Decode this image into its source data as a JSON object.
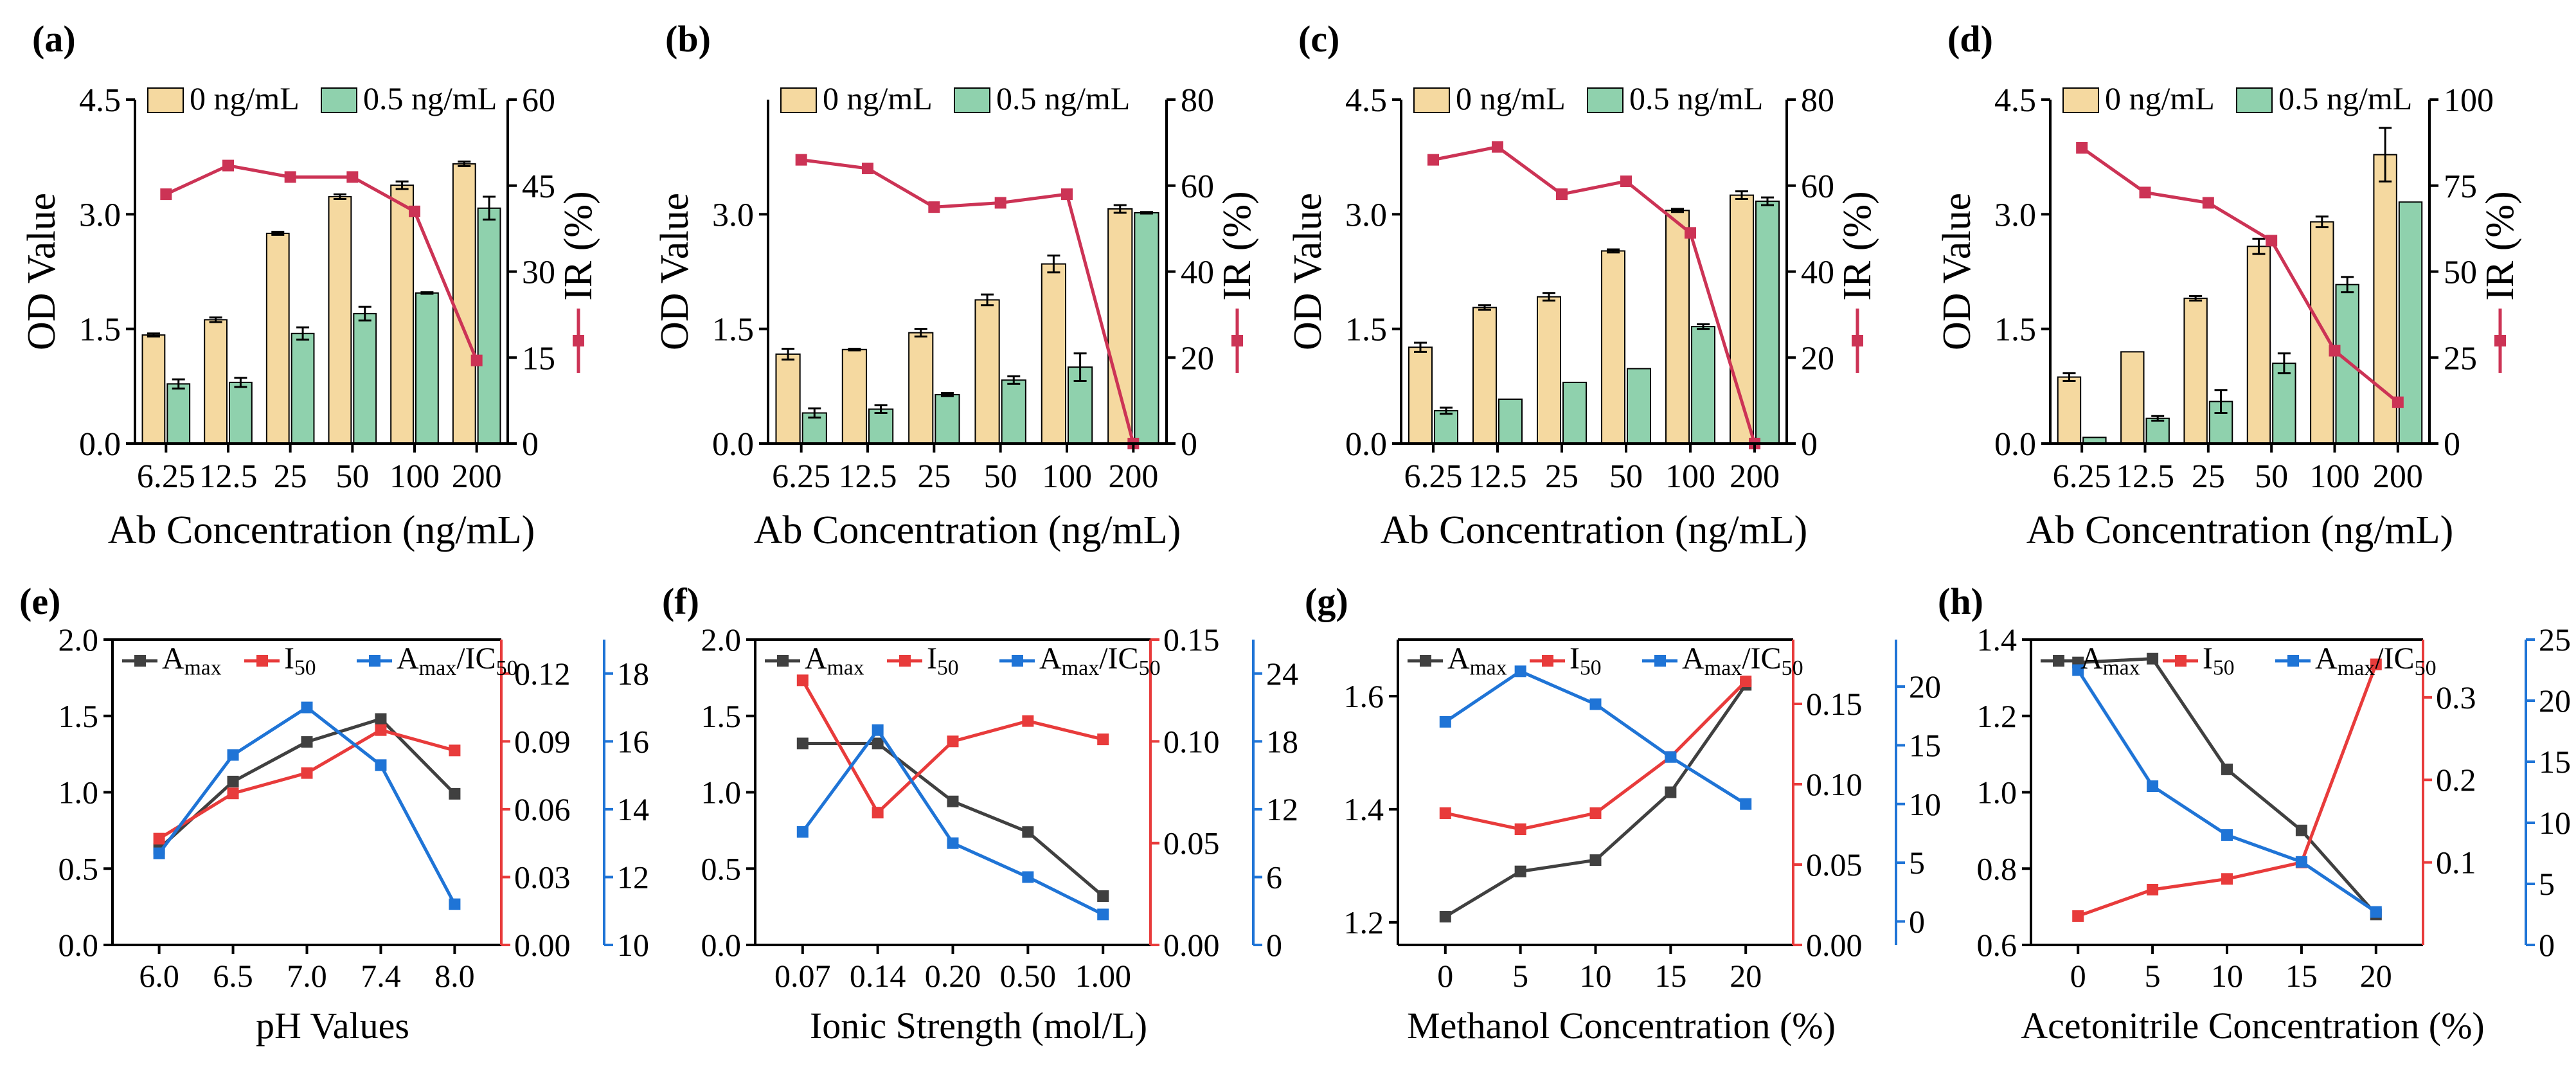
{
  "colors": {
    "bar_a": "#f5d9a0",
    "bar_b": "#8fd1ad",
    "ir": "#cc3355",
    "black": "#404040",
    "red": "#e83b3b",
    "blue": "#1f74d6"
  },
  "chart_data": [
    {
      "panel": "(a)",
      "type": "bar",
      "categories": [
        "6.25",
        "12.5",
        "25",
        "50",
        "100",
        "200"
      ],
      "series": [
        {
          "name": "0 ng/mL",
          "values": [
            1.42,
            1.62,
            2.75,
            3.23,
            3.38,
            3.66
          ],
          "err": [
            0.02,
            0.03,
            0.02,
            0.03,
            0.05,
            0.03
          ]
        },
        {
          "name": "0.5 ng/mL",
          "values": [
            0.78,
            0.8,
            1.44,
            1.7,
            1.97,
            3.08
          ],
          "err": [
            0.06,
            0.06,
            0.08,
            0.09,
            0.01,
            0.15
          ]
        }
      ],
      "line": {
        "name": "IR (%)",
        "values": [
          43.5,
          48.5,
          46.5,
          46.5,
          40.5,
          14.5
        ]
      },
      "xlabel": "Ab Concentration (ng/mL)",
      "ylabel": "OD Value",
      "y2label": "IR (%)",
      "ylim": [
        0,
        4.5
      ],
      "yticks": [
        "0.0",
        "1.5",
        "3.0",
        "4.5"
      ],
      "y2lim": [
        0,
        60
      ],
      "y2ticks": [
        "0",
        "15",
        "30",
        "45",
        "60"
      ]
    },
    {
      "panel": "(b)",
      "type": "bar",
      "categories": [
        "6.25",
        "12.5",
        "25",
        "50",
        "100",
        "200"
      ],
      "series": [
        {
          "name": "0 ng/mL",
          "values": [
            1.17,
            1.23,
            1.45,
            1.88,
            2.35,
            3.07
          ],
          "err": [
            0.07,
            0.01,
            0.05,
            0.07,
            0.11,
            0.05
          ]
        },
        {
          "name": "0.5 ng/mL",
          "values": [
            0.4,
            0.45,
            0.64,
            0.83,
            1.0,
            3.02
          ],
          "err": [
            0.06,
            0.05,
            0.02,
            0.05,
            0.18,
            0.01
          ]
        }
      ],
      "line": {
        "name": "IR (%)",
        "values": [
          66,
          64,
          55,
          56,
          58,
          0
        ]
      },
      "xlabel": "Ab Concentration (ng/mL)",
      "ylabel": "OD Value",
      "y2label": "IR (%)",
      "ylim": [
        0,
        4.5
      ],
      "yticks": [
        "0.0",
        "1.5",
        "3.0"
      ],
      "y2lim": [
        0,
        80
      ],
      "y2ticks": [
        "0",
        "20",
        "40",
        "60",
        "80"
      ]
    },
    {
      "panel": "(c)",
      "type": "bar",
      "categories": [
        "6.25",
        "12.5",
        "25",
        "50",
        "100",
        "200"
      ],
      "series": [
        {
          "name": "0 ng/mL",
          "values": [
            1.26,
            1.78,
            1.92,
            2.52,
            3.05,
            3.25
          ],
          "err": [
            0.06,
            0.03,
            0.05,
            0.02,
            0.02,
            0.05
          ]
        },
        {
          "name": "0.5 ng/mL",
          "values": [
            0.43,
            0.58,
            0.8,
            0.98,
            1.53,
            3.17
          ],
          "err": [
            0.04,
            0.0,
            0.0,
            0.0,
            0.03,
            0.05
          ]
        }
      ],
      "line": {
        "name": "IR (%)",
        "values": [
          66,
          69,
          58,
          61,
          49,
          0
        ]
      },
      "xlabel": "Ab Concentration (ng/mL)",
      "ylabel": "OD Value",
      "y2label": "IR (%)",
      "ylim": [
        0,
        4.5
      ],
      "yticks": [
        "0.0",
        "1.5",
        "3.0",
        "4.5"
      ],
      "y2lim": [
        0,
        80
      ],
      "y2ticks": [
        "0",
        "20",
        "40",
        "60",
        "80"
      ]
    },
    {
      "panel": "(d)",
      "type": "bar",
      "categories": [
        "6.25",
        "12.5",
        "25",
        "50",
        "100",
        "200"
      ],
      "series": [
        {
          "name": "0 ng/mL",
          "values": [
            0.87,
            1.2,
            1.9,
            2.58,
            2.9,
            3.78
          ],
          "err": [
            0.05,
            0.0,
            0.03,
            0.1,
            0.07,
            0.35
          ]
        },
        {
          "name": "0.5 ng/mL",
          "values": [
            0.08,
            0.33,
            0.55,
            1.05,
            2.08,
            3.16
          ],
          "err": [
            0.0,
            0.03,
            0.15,
            0.13,
            0.1,
            0.0
          ]
        }
      ],
      "line": {
        "name": "IR (%)",
        "values": [
          86,
          73,
          70,
          59,
          27,
          12
        ]
      },
      "xlabel": "Ab Concentration (ng/mL)",
      "ylabel": "OD Value",
      "y2label": "IR (%)",
      "ylim": [
        0,
        4.5
      ],
      "yticks": [
        "0.0",
        "1.5",
        "3.0",
        "4.5"
      ],
      "y2lim": [
        0,
        100
      ],
      "y2ticks": [
        "0",
        "25",
        "50",
        "75",
        "100"
      ]
    },
    {
      "panel": "(e)",
      "type": "line",
      "categories": [
        "6.0",
        "6.5",
        "7.0",
        "7.4",
        "8.0"
      ],
      "series": [
        {
          "name": "Amax",
          "sub": "max",
          "axis": "left",
          "values": [
            0.63,
            1.07,
            1.33,
            1.48,
            0.99
          ]
        },
        {
          "name": "IC50",
          "sub": "50",
          "axis": "right",
          "values": [
            0.047,
            0.067,
            0.076,
            0.095,
            0.086
          ]
        },
        {
          "name": "Amax/IC50",
          "axis": "right2",
          "values": [
            12.7,
            15.6,
            17.0,
            15.3,
            11.2
          ]
        }
      ],
      "xlabel": "pH Values",
      "ylim": [
        0,
        2.0
      ],
      "yticks": [
        "0.0",
        "0.5",
        "1.0",
        "1.5",
        "2.0"
      ],
      "y2lim": [
        0,
        0.135
      ],
      "y2ticks": [
        "0.00",
        "0.03",
        "0.06",
        "0.09",
        "0.12"
      ],
      "y3lim": [
        10,
        19
      ],
      "y3ticks": [
        "10",
        "12",
        "14",
        "16",
        "18"
      ]
    },
    {
      "panel": "(f)",
      "type": "line",
      "categories": [
        "0.07",
        "0.14",
        "0.20",
        "0.50",
        "1.00"
      ],
      "series": [
        {
          "name": "Amax",
          "sub": "max",
          "axis": "left",
          "values": [
            1.32,
            1.32,
            0.94,
            0.74,
            0.32
          ]
        },
        {
          "name": "IC50",
          "sub": "50",
          "axis": "right",
          "values": [
            0.13,
            0.065,
            0.1,
            0.11,
            0.101
          ]
        },
        {
          "name": "Amax/IC50",
          "axis": "right2",
          "values": [
            10,
            19,
            9,
            6,
            2.7
          ]
        }
      ],
      "xlabel": "Ionic Strength (mol/L)",
      "ylim": [
        0,
        2.0
      ],
      "yticks": [
        "0.0",
        "0.5",
        "1.0",
        "1.5",
        "2.0"
      ],
      "y2lim": [
        0,
        0.15
      ],
      "y2ticks": [
        "0.00",
        "0.05",
        "0.10",
        "0.15"
      ],
      "y3lim": [
        0,
        27
      ],
      "y3ticks": [
        "0",
        "6",
        "12",
        "18",
        "24"
      ]
    },
    {
      "panel": "(g)",
      "type": "line",
      "categories": [
        "0",
        "5",
        "10",
        "15",
        "20"
      ],
      "series": [
        {
          "name": "Amax",
          "sub": "max",
          "axis": "left",
          "values": [
            1.21,
            1.29,
            1.31,
            1.43,
            1.62
          ]
        },
        {
          "name": "IC50",
          "sub": "50",
          "axis": "right",
          "values": [
            0.082,
            0.072,
            0.082,
            0.117,
            0.164
          ]
        },
        {
          "name": "Amax/IC50",
          "axis": "right2",
          "values": [
            17,
            21.3,
            18.5,
            14,
            10
          ]
        }
      ],
      "xlabel": "Methanol Concentration (%)",
      "ylim": [
        1.16,
        1.7
      ],
      "yticks": [
        "1.2",
        "1.4",
        "1.6"
      ],
      "y2lim": [
        0,
        0.19
      ],
      "y2ticks": [
        "0.00",
        "0.05",
        "0.10",
        "0.15"
      ],
      "y3lim": [
        -2,
        24
      ],
      "y3ticks": [
        "0",
        "5",
        "10",
        "15",
        "20"
      ]
    },
    {
      "panel": "(h)",
      "type": "line",
      "categories": [
        "0",
        "5",
        "10",
        "15",
        "20"
      ],
      "series": [
        {
          "name": "Amax",
          "sub": "max",
          "axis": "left",
          "values": [
            1.34,
            1.35,
            1.06,
            0.9,
            0.68
          ]
        },
        {
          "name": "IC50",
          "sub": "50",
          "axis": "right",
          "values": [
            0.035,
            0.067,
            0.08,
            0.1,
            0.34
          ]
        },
        {
          "name": "Amax/IC50",
          "axis": "right2",
          "values": [
            22.5,
            13,
            9,
            6.8,
            2.7
          ]
        }
      ],
      "xlabel": "Acetonitrile Concentration (%)",
      "ylim": [
        0.6,
        1.4
      ],
      "yticks": [
        "0.6",
        "0.8",
        "1.0",
        "1.2",
        "1.4"
      ],
      "y2lim": [
        0,
        0.37
      ],
      "y2ticks": [
        "0.1",
        "0.2",
        "0.3"
      ],
      "y3lim": [
        0,
        25
      ],
      "y3ticks": [
        "0",
        "5",
        "10",
        "15",
        "20",
        "25"
      ]
    }
  ]
}
